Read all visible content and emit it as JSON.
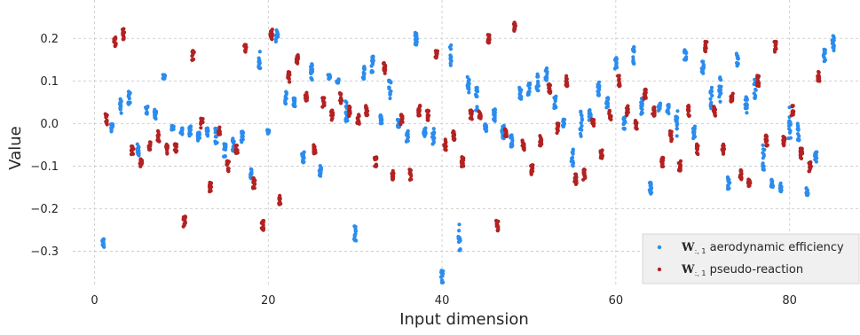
{
  "chart_data": {
    "type": "scatter",
    "title": "",
    "xlabel": "Input dimension",
    "ylabel": "Value",
    "xlim": [
      -2.5,
      88
    ],
    "ylim": [
      -0.38,
      0.29
    ],
    "xticks": [
      0,
      20,
      40,
      60,
      80
    ],
    "yticks": [
      -0.3,
      -0.2,
      -0.1,
      0.0,
      0.1,
      0.2
    ],
    "xtick_labels": [
      "0",
      "20",
      "40",
      "60",
      "80"
    ],
    "ytick_labels": [
      "−0.3",
      "−0.2",
      "−0.1",
      "0.0",
      "0.1",
      "0.2"
    ],
    "grid": true,
    "legend_position": "bottom-right",
    "series": [
      {
        "name": "aerodynamic efficiency",
        "legend_symbol": "W",
        "legend_subscript": ":, 1",
        "color": "#2b8cee",
        "values": [
          -0.28,
          -0.01,
          0.04,
          0.06,
          -0.06,
          0.03,
          0.02,
          0.11,
          -0.01,
          -0.02,
          -0.02,
          -0.03,
          -0.02,
          -0.03,
          -0.06,
          -0.05,
          -0.03,
          -0.12,
          0.15,
          -0.02,
          0.2,
          0.06,
          0.05,
          -0.08,
          0.12,
          -0.11,
          0.11,
          0.1,
          0.03,
          -0.26,
          0.12,
          0.14,
          0.01,
          0.08,
          0.0,
          -0.03,
          0.2,
          -0.02,
          -0.03,
          -0.36,
          0.16,
          -0.27,
          0.09,
          0.06,
          -0.01,
          0.02,
          -0.02,
          -0.04,
          0.07,
          0.08,
          0.1,
          0.12,
          0.05,
          0.0,
          -0.08,
          0.0,
          0.02,
          0.08,
          0.05,
          0.14,
          0.0,
          0.16,
          0.04,
          -0.15,
          0.04,
          0.03,
          0.0,
          0.16,
          -0.02,
          0.13,
          0.06,
          0.08,
          -0.14,
          0.15,
          0.04,
          0.08,
          -0.08,
          -0.14,
          -0.15,
          0.0,
          -0.02,
          -0.16,
          -0.08,
          0.16,
          0.19
        ],
        "spreads": [
          0.02,
          0.02,
          0.04,
          0.03,
          0.03,
          0.02,
          0.03,
          0.01,
          0.01,
          0.02,
          0.03,
          0.02,
          0.02,
          0.04,
          0.04,
          0.03,
          0.03,
          0.03,
          0.05,
          0.01,
          0.04,
          0.03,
          0.02,
          0.03,
          0.04,
          0.03,
          0.01,
          0.01,
          0.05,
          0.04,
          0.03,
          0.04,
          0.02,
          0.05,
          0.02,
          0.03,
          0.03,
          0.02,
          0.04,
          0.03,
          0.05,
          0.07,
          0.04,
          0.06,
          0.02,
          0.03,
          0.03,
          0.03,
          0.03,
          0.03,
          0.05,
          0.04,
          0.03,
          0.02,
          0.04,
          0.06,
          0.03,
          0.04,
          0.03,
          0.03,
          0.03,
          0.04,
          0.04,
          0.03,
          0.02,
          0.03,
          0.06,
          0.03,
          0.03,
          0.04,
          0.05,
          0.06,
          0.03,
          0.03,
          0.05,
          0.05,
          0.06,
          0.02,
          0.02,
          0.08,
          0.04,
          0.02,
          0.03,
          0.03,
          0.04
        ]
      },
      {
        "name": "pseudo-reaction",
        "legend_symbol": "W",
        "legend_subscript": ":, 1",
        "color": "#b22222",
        "values": [
          0.01,
          0.19,
          0.21,
          -0.06,
          -0.09,
          -0.05,
          -0.03,
          -0.06,
          -0.06,
          -0.23,
          0.16,
          0.0,
          -0.15,
          -0.02,
          -0.1,
          -0.06,
          0.18,
          -0.14,
          -0.24,
          0.21,
          -0.18,
          0.11,
          0.15,
          0.06,
          -0.06,
          0.05,
          0.02,
          0.06,
          0.03,
          0.01,
          0.03,
          -0.09,
          0.13,
          -0.12,
          0.01,
          -0.12,
          0.03,
          0.02,
          0.16,
          -0.05,
          -0.03,
          -0.09,
          0.02,
          0.02,
          0.2,
          -0.24,
          -0.02,
          0.23,
          -0.05,
          -0.11,
          -0.04,
          0.08,
          -0.01,
          0.1,
          -0.13,
          -0.12,
          0.0,
          -0.07,
          0.02,
          0.1,
          0.03,
          0.0,
          0.07,
          0.03,
          -0.09,
          -0.03,
          -0.1,
          0.03,
          -0.06,
          0.18,
          0.03,
          -0.06,
          0.06,
          -0.12,
          -0.14,
          0.1,
          -0.04,
          0.18,
          -0.04,
          0.03,
          -0.07,
          -0.1,
          0.11
        ]
      }
    ]
  }
}
